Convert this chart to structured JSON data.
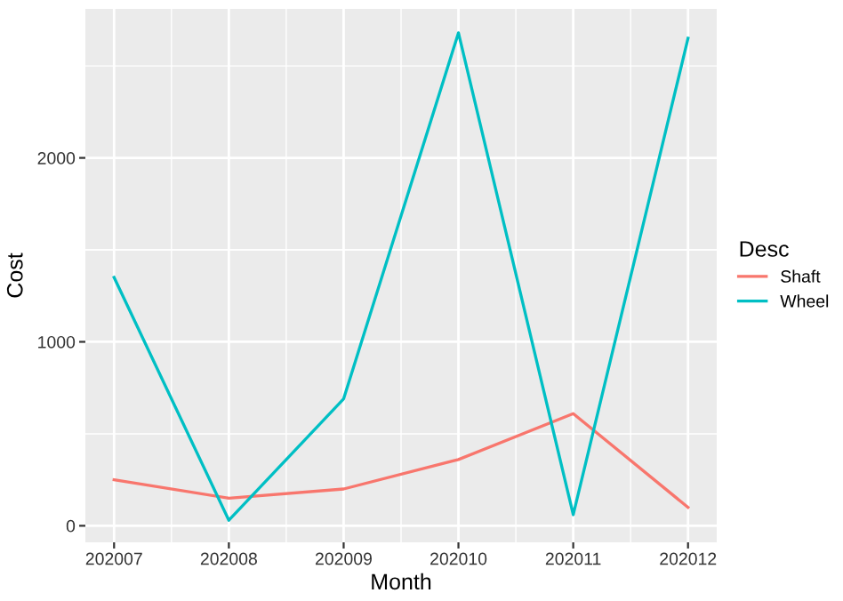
{
  "chart_data": {
    "type": "line",
    "xlabel": "Month",
    "ylabel": "Cost",
    "legend_title": "Desc",
    "legend": "right",
    "grid": true,
    "categories": [
      "202007",
      "202008",
      "202009",
      "202010",
      "202011",
      "202012"
    ],
    "series": [
      {
        "name": "Shaft",
        "color": "#f8766d",
        "values": [
          250,
          150,
          200,
          360,
          610,
          100
        ]
      },
      {
        "name": "Wheel",
        "color": "#00bfc4",
        "values": [
          1350,
          30,
          690,
          2680,
          60,
          2650
        ]
      }
    ],
    "ylim": [
      -90,
      2810
    ],
    "yticks": [
      0,
      1000,
      2000
    ],
    "marker": "none",
    "line_style": "solid"
  }
}
